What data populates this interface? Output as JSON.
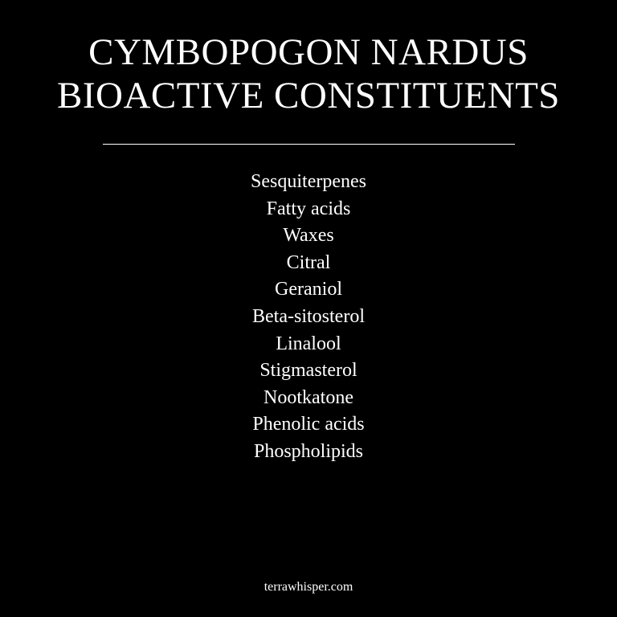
{
  "title": {
    "line1": "CYMBOPOGON NARDUS",
    "line2": "BIOACTIVE CONSTITUENTS"
  },
  "constituents": [
    "Sesquiterpenes",
    "Fatty acids",
    "Waxes",
    "Citral",
    "Geraniol",
    "Beta-sitosterol",
    "Linalool",
    "Stigmasterol",
    "Nootkatone",
    "Phenolic acids",
    "Phospholipids"
  ],
  "footer": {
    "site": "terrawhisper.com"
  },
  "colors": {
    "background": "#000000",
    "text": "#ffffff"
  }
}
